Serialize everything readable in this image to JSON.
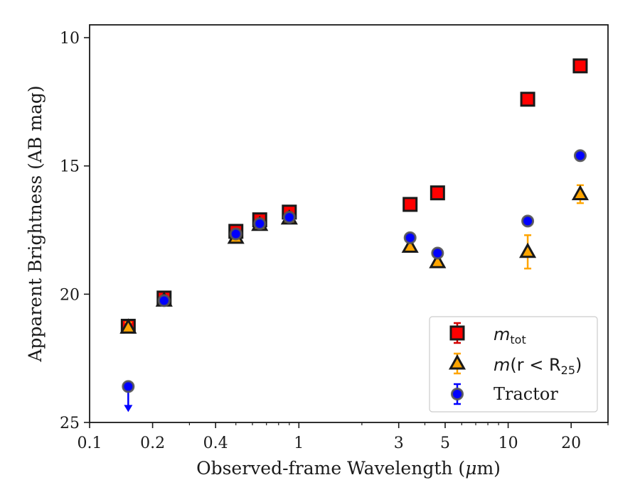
{
  "chart_data": {
    "type": "scatter",
    "xlabel_main": "Observed-frame Wavelength (",
    "xlabel_mu": "μ",
    "xlabel_end": "m)",
    "ylabel": "Apparent Brightness (AB mag)",
    "x_scale": "log",
    "y_inverted": true,
    "xlim": [
      0.1,
      30
    ],
    "ylim": [
      25,
      9.5
    ],
    "x_ticks": [
      {
        "value": 0.1,
        "label": "0.1"
      },
      {
        "value": 0.2,
        "label": "0.2"
      },
      {
        "value": 0.4,
        "label": "0.4"
      },
      {
        "value": 1,
        "label": "1"
      },
      {
        "value": 3,
        "label": "3"
      },
      {
        "value": 5,
        "label": "5"
      },
      {
        "value": 10,
        "label": "10"
      },
      {
        "value": 20,
        "label": "20"
      }
    ],
    "y_ticks": [
      {
        "value": 10,
        "label": "10"
      },
      {
        "value": 15,
        "label": "15"
      },
      {
        "value": 20,
        "label": "20"
      },
      {
        "value": 25,
        "label": "25"
      }
    ],
    "grid": false,
    "legend_position": "lower-right",
    "series": [
      {
        "key": "mtot",
        "legend_main": "m",
        "legend_sub": "tot",
        "marker": "square",
        "color": "#ff0000",
        "edge": "#1a1a1a",
        "errcolor": "#d40000",
        "points": [
          {
            "x": 0.153,
            "y": 21.25,
            "err": 0.15
          },
          {
            "x": 0.227,
            "y": 20.15,
            "err": 0.1
          },
          {
            "x": 0.5,
            "y": 17.55,
            "err": 0.05
          },
          {
            "x": 0.65,
            "y": 17.1,
            "err": 0.05
          },
          {
            "x": 0.9,
            "y": 16.8,
            "err": 0.05
          },
          {
            "x": 3.4,
            "y": 16.5,
            "err": 0.05
          },
          {
            "x": 4.6,
            "y": 16.05,
            "err": 0.05
          },
          {
            "x": 12.4,
            "y": 12.4,
            "err": 0.05
          },
          {
            "x": 22.1,
            "y": 11.1,
            "err": 0.05
          }
        ]
      },
      {
        "key": "mr25",
        "legend_main": "m",
        "legend_paren": "(r < R",
        "legend_sub": "25",
        "legend_close": ")",
        "marker": "triangle",
        "color": "#ffa500",
        "edge": "#1a1a1a",
        "errcolor": "#ffa500",
        "points": [
          {
            "x": 0.153,
            "y": 21.3,
            "err": 0.2
          },
          {
            "x": 0.227,
            "y": 20.25,
            "err": 0.1
          },
          {
            "x": 0.5,
            "y": 17.8,
            "err": 0.05
          },
          {
            "x": 0.65,
            "y": 17.3,
            "err": 0.05
          },
          {
            "x": 0.9,
            "y": 17.05,
            "err": 0.05
          },
          {
            "x": 3.4,
            "y": 18.15,
            "err": 0.1
          },
          {
            "x": 4.6,
            "y": 18.75,
            "err": 0.1
          },
          {
            "x": 12.4,
            "y": 18.35,
            "err": 0.65
          },
          {
            "x": 22.1,
            "y": 16.1,
            "err": 0.35
          }
        ]
      },
      {
        "key": "tractor",
        "legend_label": "Tractor",
        "marker": "circle",
        "color": "#0000ff",
        "edge": "#555555",
        "errcolor": "#0000ff",
        "points": [
          {
            "x": 0.153,
            "y": 23.6,
            "err": 0,
            "upper_limit": true
          },
          {
            "x": 0.227,
            "y": 20.25,
            "err": 0.05
          },
          {
            "x": 0.5,
            "y": 17.65,
            "err": 0.05
          },
          {
            "x": 0.65,
            "y": 17.25,
            "err": 0.05
          },
          {
            "x": 0.9,
            "y": 17.0,
            "err": 0.05
          },
          {
            "x": 3.4,
            "y": 17.8,
            "err": 0.05
          },
          {
            "x": 4.6,
            "y": 18.4,
            "err": 0.05
          },
          {
            "x": 12.4,
            "y": 17.15,
            "err": 0.05
          },
          {
            "x": 22.1,
            "y": 14.6,
            "err": 0.05
          }
        ]
      }
    ]
  }
}
